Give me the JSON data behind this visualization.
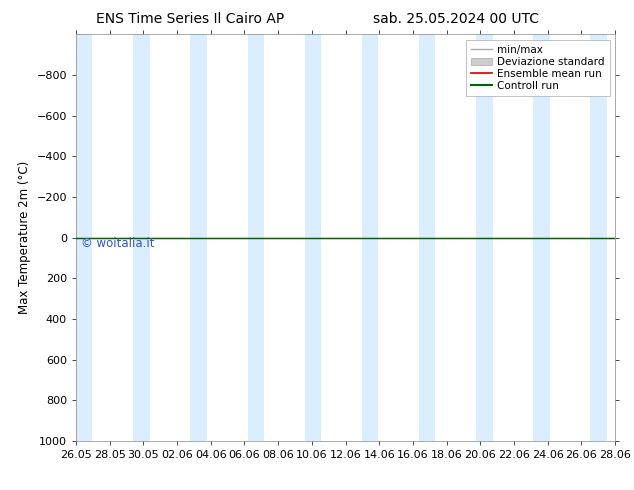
{
  "title_left": "ENS Time Series Il Cairo AP",
  "title_right": "sab. 25.05.2024 00 UTC",
  "ylabel": "Max Temperature 2m (°C)",
  "ylim_bottom": 1000,
  "ylim_top": -1000,
  "yticks": [
    -800,
    -600,
    -400,
    -200,
    0,
    200,
    400,
    600,
    800,
    1000
  ],
  "xtick_labels": [
    "26.05",
    "28.05",
    "30.05",
    "02.06",
    "04.06",
    "06.06",
    "08.06",
    "10.06",
    "12.06",
    "14.06",
    "16.06",
    "18.06",
    "20.06",
    "22.06",
    "24.06",
    "26.06",
    "28.06"
  ],
  "x_min": 0,
  "x_max": 33,
  "band_color": "#dbeeff",
  "band_pairs": [
    [
      0.0,
      1.0
    ],
    [
      3.5,
      4.5
    ],
    [
      7.0,
      8.0
    ],
    [
      10.5,
      11.5
    ],
    [
      14.0,
      15.0
    ],
    [
      17.5,
      18.5
    ],
    [
      21.0,
      22.0
    ],
    [
      24.5,
      25.5
    ],
    [
      28.0,
      29.0
    ],
    [
      31.5,
      32.5
    ]
  ],
  "ensemble_mean_color": "#cc0000",
  "control_run_color": "#006600",
  "min_max_color": "#aaaaaa",
  "std_fill_color": "#cccccc",
  "watermark": "© woitalia.it",
  "watermark_color": "#3355cc",
  "legend_labels": [
    "min/max",
    "Deviazione standard",
    "Ensemble mean run",
    "Controll run"
  ],
  "background_color": "#ffffff",
  "title_fontsize": 10,
  "axis_fontsize": 8.5,
  "tick_fontsize": 8
}
